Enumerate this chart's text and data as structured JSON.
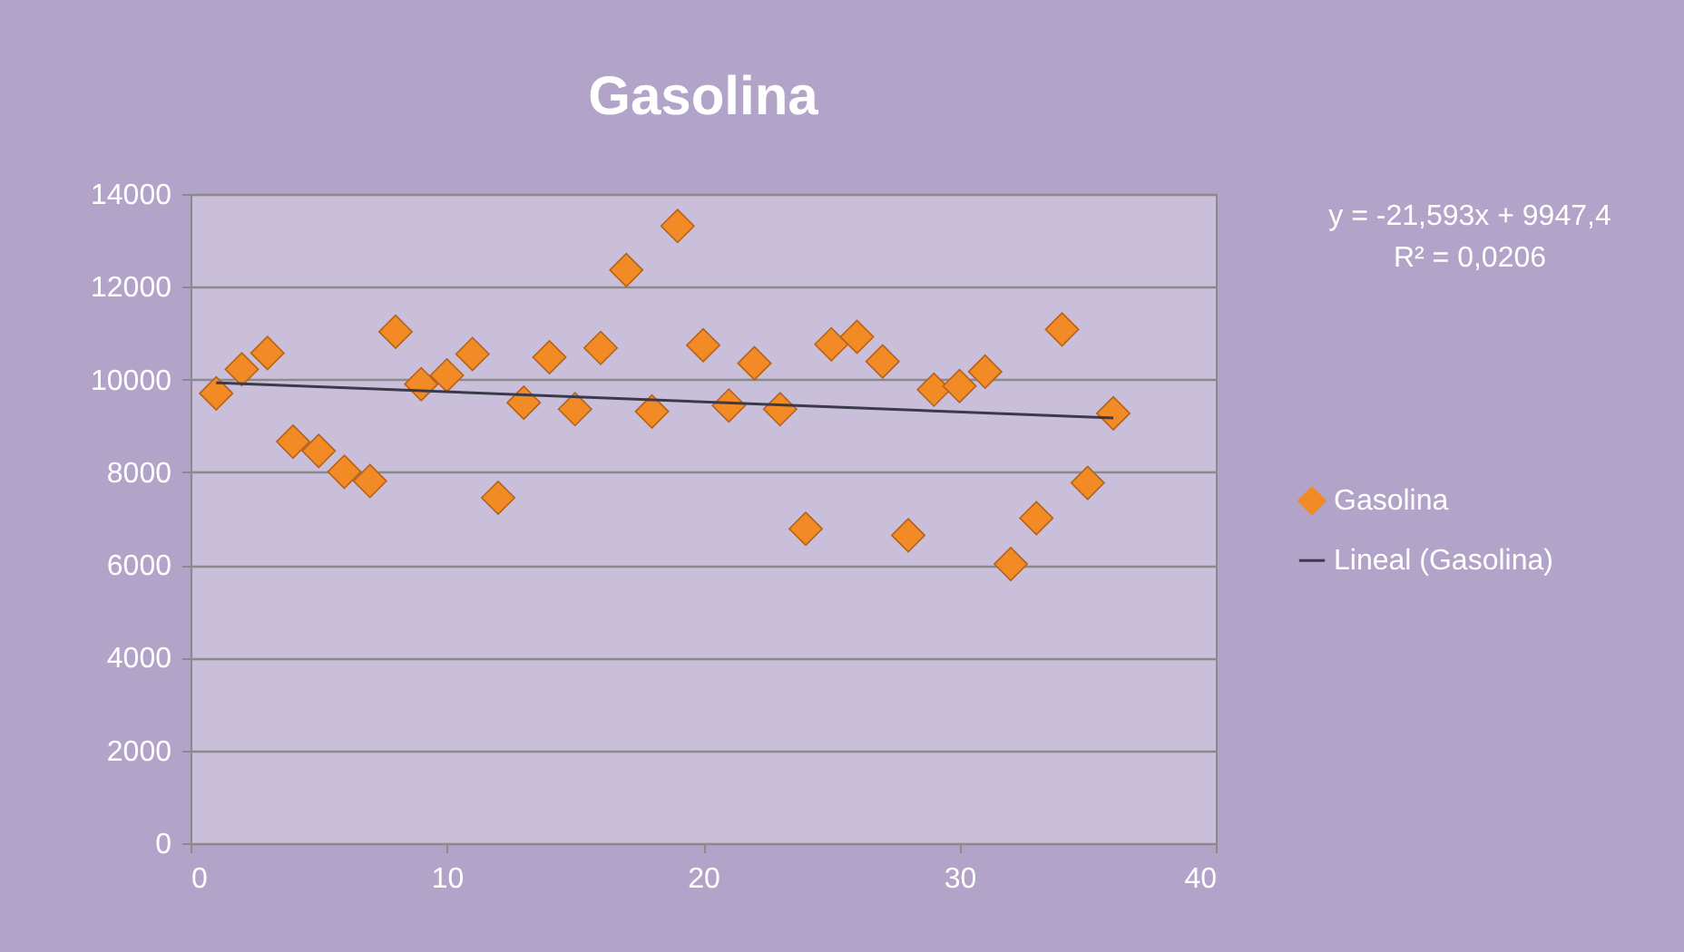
{
  "chart_data": {
    "type": "scatter",
    "title": "Gasolina",
    "xlim": [
      0,
      40
    ],
    "xticks": [
      0,
      10,
      20,
      30,
      40
    ],
    "ylim": [
      0,
      14000
    ],
    "yticks": [
      0,
      2000,
      4000,
      6000,
      8000,
      10000,
      12000,
      14000
    ],
    "grid": "y",
    "legend": "right",
    "annotations": [
      "y = -21,593x + 9947,4",
      "R² = 0,0206"
    ],
    "series": [
      {
        "name": "Gasolina",
        "marker": "diamond",
        "color": "#f28a25",
        "x": [
          1,
          2,
          3,
          4,
          5,
          6,
          7,
          8,
          9,
          10,
          11,
          12,
          13,
          14,
          15,
          16,
          17,
          18,
          19,
          20,
          21,
          22,
          23,
          24,
          25,
          26,
          27,
          28,
          29,
          30,
          31,
          32,
          33,
          34,
          35,
          36
        ],
        "values": [
          9700,
          10220,
          10570,
          8660,
          8460,
          8010,
          7810,
          11030,
          9900,
          10090,
          10550,
          7450,
          9500,
          10480,
          9360,
          10680,
          12360,
          9310,
          13310,
          10740,
          9440,
          10350,
          9360,
          6780,
          10760,
          10920,
          10390,
          6640,
          9780,
          9860,
          10170,
          6020,
          7010,
          11080,
          7770,
          9270
        ]
      },
      {
        "name": "Lineal (Gasolina)",
        "type": "line",
        "color": "#3a3a4a",
        "line_style": "solid",
        "marker": "none",
        "x": [
          1,
          36
        ],
        "values": [
          9930,
          9170
        ]
      }
    ]
  }
}
